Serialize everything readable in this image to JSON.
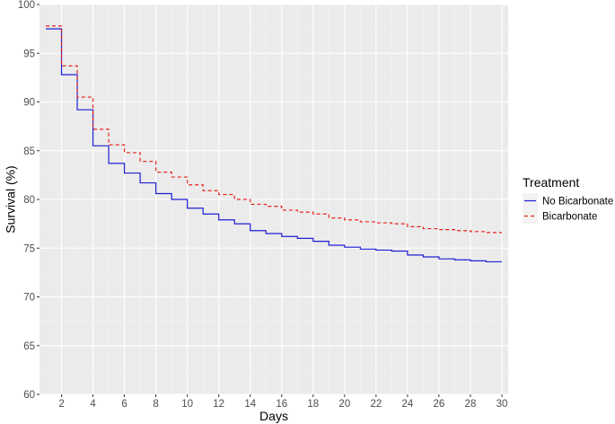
{
  "chart_data": {
    "type": "line",
    "step": true,
    "xlabel": "Days",
    "ylabel": "Survival (%)",
    "xlim": [
      1,
      30
    ],
    "ylim": [
      60,
      100
    ],
    "x_ticks": [
      2,
      4,
      6,
      8,
      10,
      12,
      14,
      16,
      18,
      20,
      22,
      24,
      26,
      28,
      30
    ],
    "y_ticks": [
      60,
      65,
      70,
      75,
      80,
      85,
      90,
      95,
      100
    ],
    "background": "#ebebeb",
    "grid": true,
    "legend": {
      "title": "Treatment",
      "position": "right"
    },
    "series": [
      {
        "name": "No Bicarbonate",
        "color": "#1f1fd6",
        "dash": "solid",
        "x": [
          1,
          2,
          3,
          4,
          5,
          6,
          7,
          8,
          9,
          10,
          11,
          12,
          13,
          14,
          15,
          16,
          17,
          18,
          19,
          20,
          21,
          22,
          23,
          24,
          25,
          26,
          27,
          28,
          29,
          30
        ],
        "values": [
          97.5,
          92.8,
          89.2,
          85.5,
          83.7,
          82.7,
          81.7,
          80.6,
          80.0,
          79.1,
          78.5,
          77.9,
          77.5,
          76.8,
          76.5,
          76.2,
          76.0,
          75.7,
          75.3,
          75.1,
          74.9,
          74.8,
          74.7,
          74.3,
          74.1,
          73.9,
          73.8,
          73.7,
          73.6,
          73.6
        ]
      },
      {
        "name": "Bicarbonate",
        "color": "#e8231c",
        "dash": "dashed",
        "x": [
          1,
          2,
          3,
          4,
          5,
          6,
          7,
          8,
          9,
          10,
          11,
          12,
          13,
          14,
          15,
          16,
          17,
          18,
          19,
          20,
          21,
          22,
          23,
          24,
          25,
          26,
          27,
          28,
          29,
          30
        ],
        "values": [
          97.8,
          93.7,
          90.5,
          87.2,
          85.6,
          84.8,
          83.9,
          82.8,
          82.3,
          81.5,
          80.9,
          80.5,
          80.0,
          79.5,
          79.3,
          78.9,
          78.7,
          78.5,
          78.1,
          77.9,
          77.7,
          77.6,
          77.5,
          77.2,
          77.0,
          76.9,
          76.8,
          76.7,
          76.6,
          76.6
        ]
      }
    ]
  }
}
